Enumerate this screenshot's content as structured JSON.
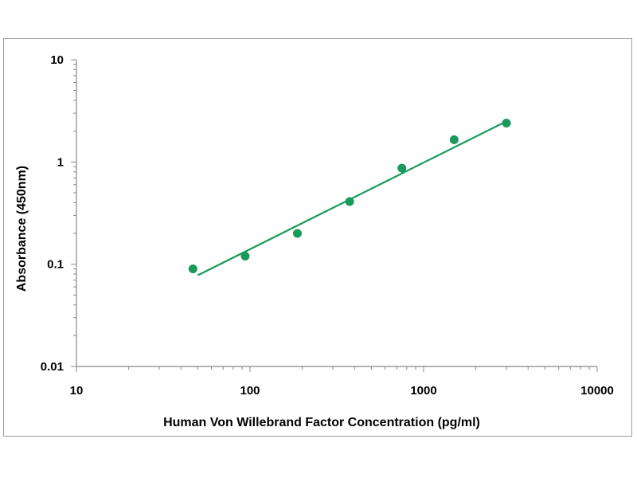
{
  "chart_data": {
    "type": "scatter",
    "title": "",
    "xlabel": "Human Von Willebrand  Factor Concentration (pg/ml)",
    "ylabel": "Absorbance (450nm)",
    "xscale": "log",
    "yscale": "log",
    "xlim": [
      10,
      10000
    ],
    "ylim": [
      0.01,
      10
    ],
    "x_ticks": [
      "10",
      "100",
      "1000",
      "10000"
    ],
    "y_ticks": [
      "10",
      "1",
      "0.1",
      "0.01"
    ],
    "grid": false,
    "legend": "none",
    "series": [
      {
        "type": "scatter",
        "x": [
          46.9,
          93.8,
          187.5,
          375,
          750,
          1500,
          3000
        ],
        "y": [
          0.09,
          0.12,
          0.2,
          0.41,
          0.87,
          1.65,
          2.4
        ]
      },
      {
        "type": "line",
        "x": [
          50,
          3000
        ],
        "y": [
          0.078,
          2.5
        ]
      }
    ],
    "colors": {
      "series": "#1a9a5a",
      "axis": "#888888",
      "frame": "#9a9a9a"
    }
  }
}
